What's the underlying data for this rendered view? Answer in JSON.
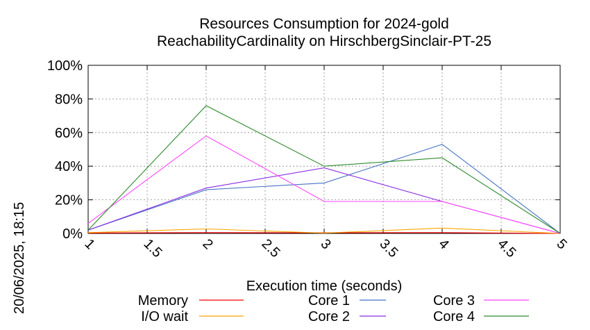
{
  "chart_data": {
    "type": "line",
    "title_line1": "Resources Consumption for 2024-gold",
    "title_line2": "ReachabilityCardinality on HirschbergSinclair-PT-25",
    "xlabel": "Execution time (seconds)",
    "ylabel": "",
    "side_label": "20/06/2025, 18:15",
    "xlim": [
      1,
      5
    ],
    "ylim": [
      0,
      100
    ],
    "x_ticks": [
      1,
      1.5,
      2,
      2.5,
      3,
      3.5,
      4,
      4.5,
      5
    ],
    "x_tick_labels": [
      "1",
      "1.5",
      "2",
      "2.5",
      "3",
      "3.5",
      "4",
      "4.5",
      "5"
    ],
    "y_ticks": [
      0,
      20,
      40,
      60,
      80,
      100
    ],
    "y_tick_labels": [
      "0%",
      "20%",
      "40%",
      "60%",
      "80%",
      "100%"
    ],
    "grid": true,
    "legend_position": "bottom",
    "x": [
      1,
      2,
      3,
      4,
      5
    ],
    "series": [
      {
        "name": "Memory",
        "color": "#ff0000",
        "values": [
          0.3,
          0.5,
          0.4,
          0.5,
          0
        ]
      },
      {
        "name": "I/O wait",
        "color": "#ffa500",
        "values": [
          0.5,
          2.7,
          0.2,
          3.2,
          0
        ]
      },
      {
        "name": "Core 1",
        "color": "#4472c4",
        "values": [
          2,
          26,
          30,
          53,
          0
        ]
      },
      {
        "name": "Core 2",
        "color": "#8a2be2",
        "values": [
          2,
          27,
          39,
          19,
          0
        ]
      },
      {
        "name": "Core 3",
        "color": "#ff44ff",
        "values": [
          6,
          58,
          19,
          19,
          0
        ]
      },
      {
        "name": "Core 4",
        "color": "#2e8b2e",
        "values": [
          2,
          76,
          40,
          45,
          0
        ]
      }
    ]
  }
}
